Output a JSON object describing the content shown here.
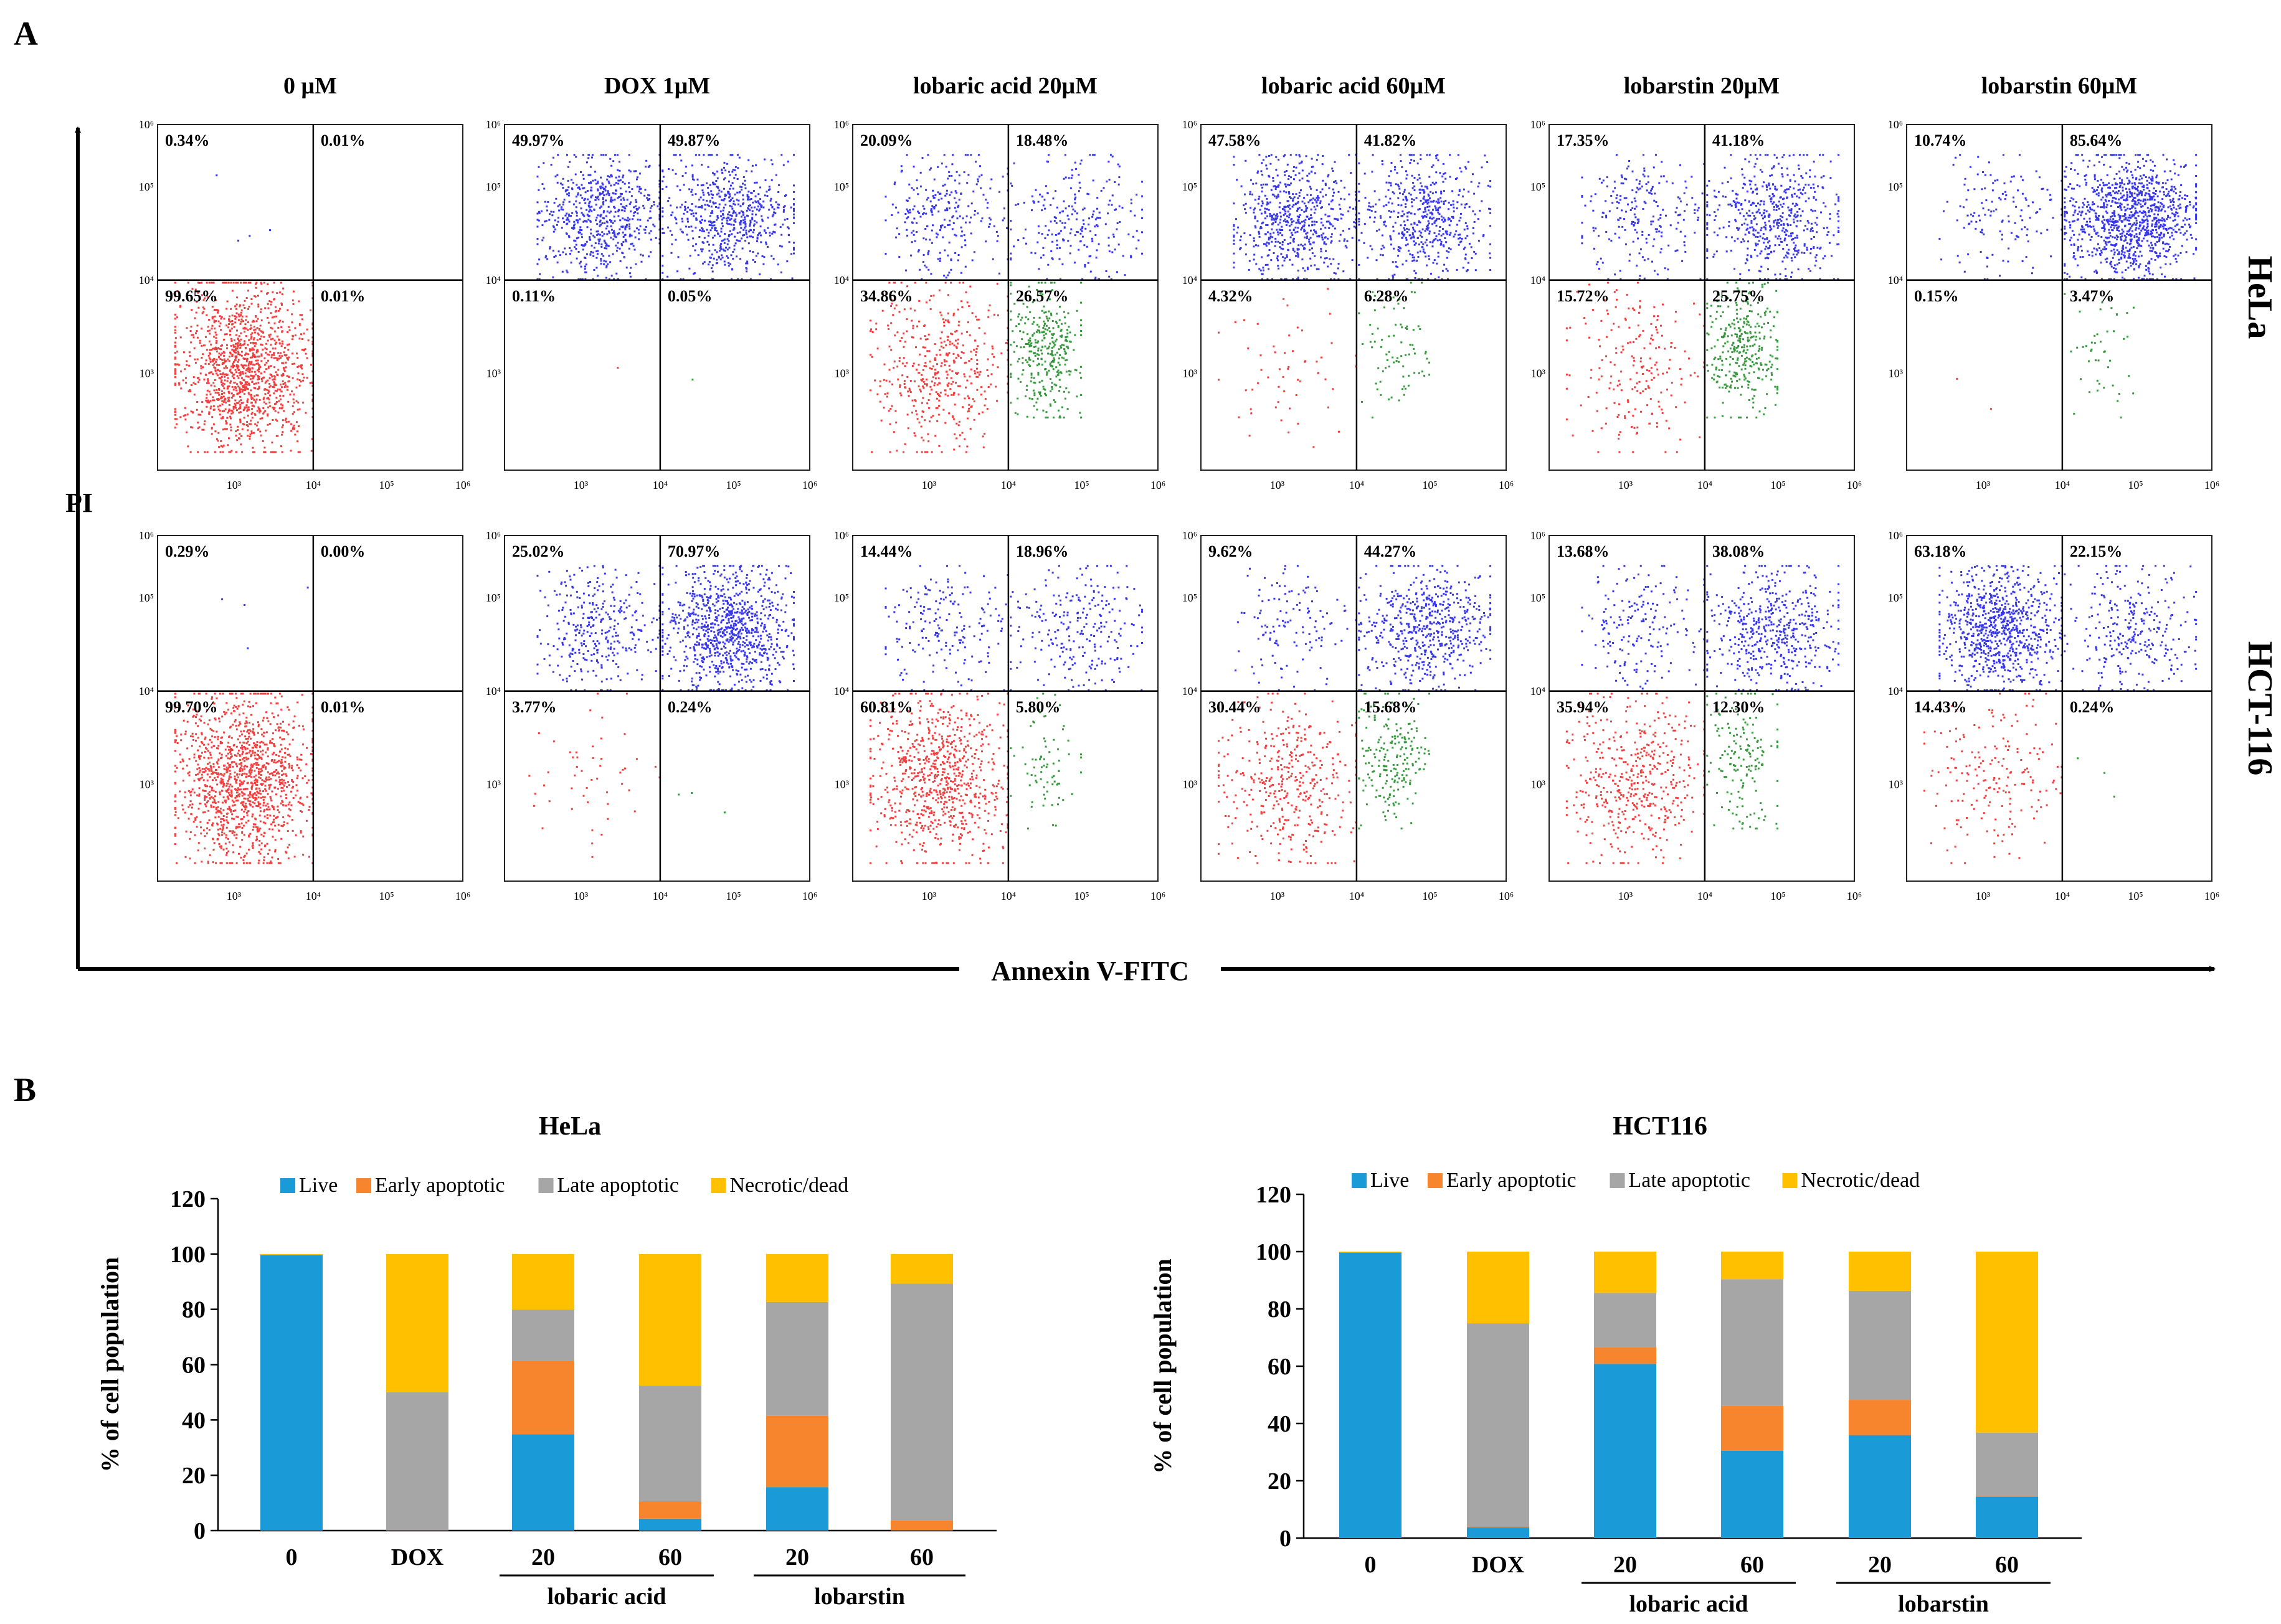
{
  "figure": {
    "panel_a_label": "A",
    "panel_b_label": "B"
  },
  "flow": {
    "y_axis_label": "PI",
    "x_axis_label": "Annexin V-FITC",
    "tick_labels": [
      "10³",
      "10⁴",
      "10⁵",
      "10⁶"
    ],
    "y_tick_labels": [
      "10³",
      "10⁴",
      "10⁵",
      "10⁶"
    ],
    "columns": [
      "0 μM",
      "DOX 1μM",
      "lobaric acid 20μM",
      "lobaric acid 60μM",
      "lobarstin 20μM",
      "lobarstin 60μM"
    ],
    "rows": [
      "HeLa",
      "HCT-116"
    ],
    "quadrants": [
      [
        {
          "ul": "0.34%",
          "ur": "0.01%",
          "ll": "99.65%",
          "lr": "0.01%"
        },
        {
          "ul": "49.97%",
          "ur": "49.87%",
          "ll": "0.11%",
          "lr": "0.05%"
        },
        {
          "ul": "20.09%",
          "ur": "18.48%",
          "ll": "34.86%",
          "lr": "26.57%"
        },
        {
          "ul": "47.58%",
          "ur": "41.82%",
          "ll": "4.32%",
          "lr": "6.28%"
        },
        {
          "ul": "17.35%",
          "ur": "41.18%",
          "ll": "15.72%",
          "lr": "25.75%"
        },
        {
          "ul": "10.74%",
          "ur": "85.64%",
          "ll": "0.15%",
          "lr": "3.47%"
        }
      ],
      [
        {
          "ul": "0.29%",
          "ur": "0.00%",
          "ll": "99.70%",
          "lr": "0.01%"
        },
        {
          "ul": "25.02%",
          "ur": "70.97%",
          "ll": "3.77%",
          "lr": "0.24%"
        },
        {
          "ul": "14.44%",
          "ur": "18.96%",
          "ll": "60.81%",
          "lr": "5.80%"
        },
        {
          "ul": "9.62%",
          "ur": "44.27%",
          "ll": "30.44%",
          "lr": "15.68%"
        },
        {
          "ul": "13.68%",
          "ur": "38.08%",
          "ll": "35.94%",
          "lr": "12.30%"
        },
        {
          "ul": "63.18%",
          "ur": "22.15%",
          "ll": "14.43%",
          "lr": "0.24%"
        }
      ]
    ],
    "colors": {
      "live": "#ee1c1c",
      "early": "#13871b",
      "late": "#1515e6"
    }
  },
  "chart_data": [
    {
      "type": "bar",
      "stacked": true,
      "title": "HeLa",
      "ylabel": "% of cell population",
      "xlabel": "",
      "ylim": [
        0,
        120
      ],
      "yticks": [
        0,
        20,
        40,
        60,
        80,
        100,
        120
      ],
      "categories": [
        "0",
        "DOX",
        "20",
        "60",
        "20",
        "60"
      ],
      "groups": [
        {
          "label": "lobaric acid",
          "categories": [
            2,
            3
          ]
        },
        {
          "label": "lobarstin",
          "categories": [
            4,
            5
          ]
        }
      ],
      "legend_position": "top",
      "series": [
        {
          "name": "Live",
          "color": "#1a9ad6",
          "values": [
            99.65,
            0.11,
            34.86,
            4.32,
            15.72,
            0.15
          ]
        },
        {
          "name": "Early apoptotic",
          "color": "#f7852e",
          "values": [
            0.01,
            0.05,
            26.57,
            6.28,
            25.75,
            3.47
          ]
        },
        {
          "name": "Late apoptotic",
          "color": "#a6a6a6",
          "values": [
            0.01,
            49.87,
            18.48,
            41.82,
            41.18,
            85.64
          ]
        },
        {
          "name": "Necrotic/dead",
          "color": "#ffc000",
          "values": [
            0.34,
            49.97,
            20.09,
            47.58,
            17.35,
            10.74
          ]
        }
      ]
    },
    {
      "type": "bar",
      "stacked": true,
      "title": "HCT116",
      "ylabel": "% of cell population",
      "xlabel": "",
      "ylim": [
        0,
        120
      ],
      "yticks": [
        0,
        20,
        40,
        60,
        80,
        100,
        120
      ],
      "categories": [
        "0",
        "DOX",
        "20",
        "60",
        "20",
        "60"
      ],
      "groups": [
        {
          "label": "lobaric acid",
          "categories": [
            2,
            3
          ]
        },
        {
          "label": "lobarstin",
          "categories": [
            4,
            5
          ]
        }
      ],
      "legend_position": "top",
      "series": [
        {
          "name": "Live",
          "color": "#1a9ad6",
          "values": [
            99.7,
            3.77,
            60.81,
            30.44,
            35.94,
            14.43
          ]
        },
        {
          "name": "Early apoptotic",
          "color": "#f7852e",
          "values": [
            0.01,
            0.24,
            5.8,
            15.68,
            12.3,
            0.24
          ]
        },
        {
          "name": "Late apoptotic",
          "color": "#a6a6a6",
          "values": [
            0.0,
            70.97,
            18.96,
            44.27,
            38.08,
            22.15
          ]
        },
        {
          "name": "Necrotic/dead",
          "color": "#ffc000",
          "values": [
            0.29,
            25.02,
            14.44,
            9.62,
            13.68,
            63.18
          ]
        }
      ]
    }
  ]
}
